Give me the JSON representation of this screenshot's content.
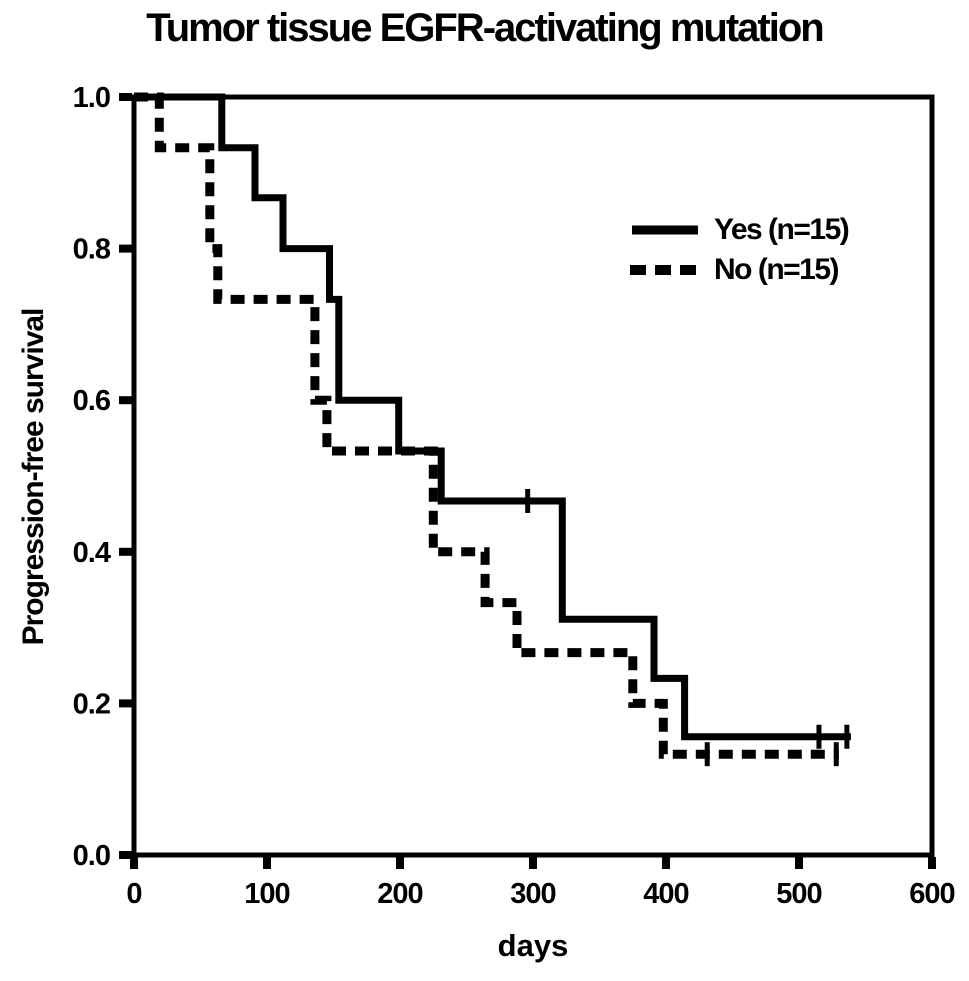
{
  "title": "Tumor tissue EGFR-activating mutation",
  "chart_data": {
    "type": "line",
    "subtype": "kaplan-meier-step",
    "title": "Tumor tissue EGFR-activating mutation",
    "xlabel": "days",
    "ylabel": "Progression-free survival",
    "xlim": [
      0,
      600
    ],
    "ylim": [
      0.0,
      1.0
    ],
    "x_ticks": [
      0,
      100,
      200,
      300,
      400,
      500,
      600
    ],
    "x_tick_labels": [
      "0",
      "100",
      "200",
      "300",
      "400",
      "500",
      "600"
    ],
    "y_ticks": [
      0.0,
      0.2,
      0.4,
      0.6,
      0.8,
      1.0
    ],
    "y_tick_labels": [
      "0.0",
      "0.2",
      "0.4",
      "0.6",
      "0.8",
      "1.0"
    ],
    "grid": false,
    "legend_position": "upper right",
    "line_color": "#000000",
    "series": [
      {
        "name": "Yes (n=15)",
        "line_style": "solid",
        "color": "#000000",
        "steps": [
          [
            0,
            1.0
          ],
          [
            66,
            1.0
          ],
          [
            66,
            0.933
          ],
          [
            91,
            0.933
          ],
          [
            91,
            0.867
          ],
          [
            112,
            0.867
          ],
          [
            112,
            0.8
          ],
          [
            147,
            0.8
          ],
          [
            147,
            0.733
          ],
          [
            154,
            0.733
          ],
          [
            154,
            0.6
          ],
          [
            199,
            0.6
          ],
          [
            199,
            0.533
          ],
          [
            231,
            0.533
          ],
          [
            231,
            0.467
          ],
          [
            322,
            0.467
          ],
          [
            322,
            0.311
          ],
          [
            391,
            0.311
          ],
          [
            391,
            0.233
          ],
          [
            414,
            0.233
          ],
          [
            414,
            0.156
          ],
          [
            539,
            0.156
          ]
        ],
        "censor_marks": [
          [
            296,
            0.467
          ],
          [
            515,
            0.156
          ],
          [
            536,
            0.156
          ]
        ]
      },
      {
        "name": "No (n=15)",
        "line_style": "dashed",
        "color": "#000000",
        "steps": [
          [
            0,
            1.0
          ],
          [
            19,
            1.0
          ],
          [
            19,
            0.933
          ],
          [
            57,
            0.933
          ],
          [
            57,
            0.8
          ],
          [
            63,
            0.8
          ],
          [
            63,
            0.733
          ],
          [
            136,
            0.733
          ],
          [
            136,
            0.6
          ],
          [
            145,
            0.6
          ],
          [
            145,
            0.533
          ],
          [
            225,
            0.533
          ],
          [
            225,
            0.4
          ],
          [
            264,
            0.4
          ],
          [
            264,
            0.333
          ],
          [
            288,
            0.333
          ],
          [
            288,
            0.267
          ],
          [
            375,
            0.267
          ],
          [
            375,
            0.2
          ],
          [
            398,
            0.2
          ],
          [
            398,
            0.133
          ],
          [
            530,
            0.133
          ]
        ],
        "censor_marks": [
          [
            431,
            0.133
          ],
          [
            528,
            0.133
          ]
        ]
      }
    ]
  }
}
